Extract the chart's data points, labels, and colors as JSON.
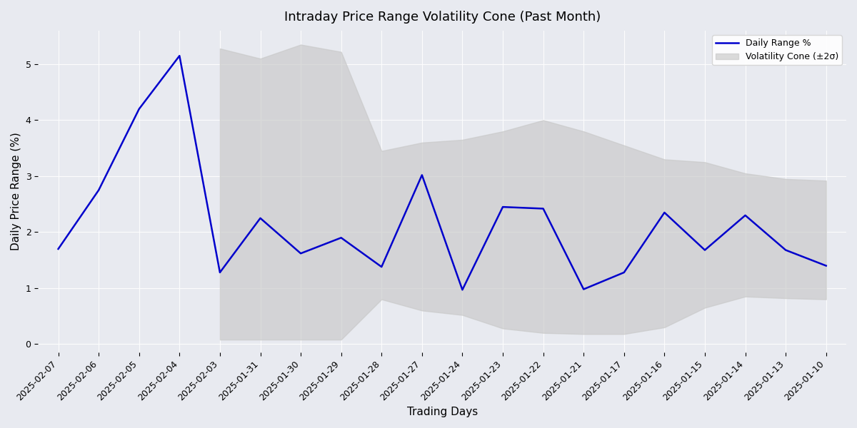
{
  "title": "Intraday Price Range Volatility Cone (Past Month)",
  "xlabel": "Trading Days",
  "ylabel": "Daily Price Range (%)",
  "dates": [
    "2025-02-07",
    "2025-02-06",
    "2025-02-05",
    "2025-02-04",
    "2025-02-03",
    "2025-01-31",
    "2025-01-30",
    "2025-01-29",
    "2025-01-28",
    "2025-01-27",
    "2025-01-24",
    "2025-01-23",
    "2025-01-22",
    "2025-01-21",
    "2025-01-17",
    "2025-01-16",
    "2025-01-15",
    "2025-01-14",
    "2025-01-13",
    "2025-01-10"
  ],
  "daily_range": [
    1.7,
    2.75,
    4.2,
    5.15,
    1.28,
    2.25,
    1.62,
    1.9,
    1.38,
    3.02,
    0.97,
    2.45,
    2.42,
    0.98,
    1.28,
    2.35,
    1.68,
    2.3,
    1.68,
    1.4
  ],
  "cone_upper": [
    null,
    null,
    null,
    null,
    5.28,
    5.1,
    5.35,
    5.22,
    3.45,
    3.6,
    3.65,
    3.8,
    4.0,
    3.8,
    3.55,
    3.3,
    3.25,
    3.05,
    2.95,
    2.92
  ],
  "cone_lower": [
    null,
    null,
    null,
    null,
    0.08,
    0.08,
    0.08,
    0.08,
    0.8,
    0.6,
    0.52,
    0.28,
    0.2,
    0.18,
    0.18,
    0.3,
    0.65,
    0.85,
    0.82,
    0.8
  ],
  "line_color": "#0000cc",
  "cone_color": "#c8c8c8",
  "cone_alpha": 0.65,
  "bg_color": "#e8eaf0",
  "plot_bg_color": "#e8eaf0",
  "ylim": [
    -0.15,
    5.6
  ],
  "yticks": [
    0,
    1,
    2,
    3,
    4,
    5
  ],
  "title_fontsize": 13,
  "label_fontsize": 11,
  "tick_fontsize": 9,
  "legend_line_label": "Daily Range %",
  "legend_cone_label": "Volatility Cone (±2σ)"
}
